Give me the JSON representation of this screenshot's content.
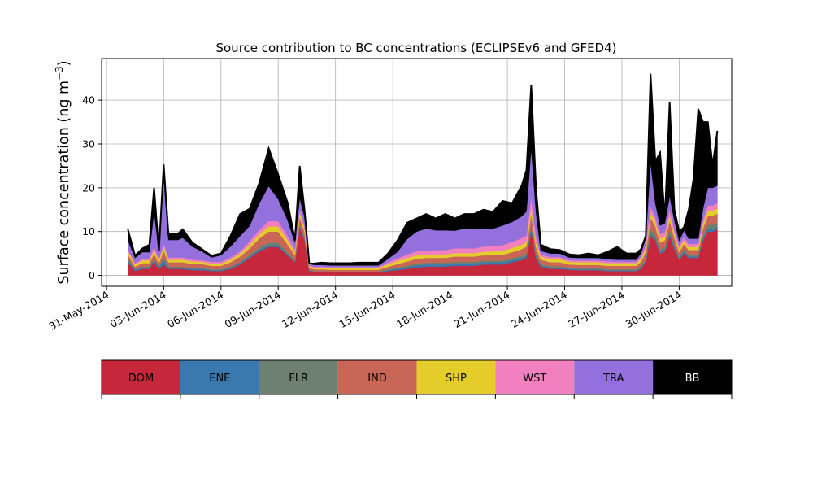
{
  "chart_data": {
    "type": "area",
    "stacked": true,
    "title": "Source contribution to BC concentrations (ECLIPSEv6 and GFED4)",
    "ylabel": "Surface concentration (ng m",
    "ylabel_superscript": "−3",
    "ylabel_close": ")",
    "xlim": [
      "2014-05-30T18:00",
      "2014-07-02T18:00"
    ],
    "ylim": [
      -2.5,
      49.5
    ],
    "yticks": [
      0,
      10,
      20,
      30,
      40
    ],
    "xticks": [
      "2014-05-31",
      "2014-06-03",
      "2014-06-06",
      "2014-06-09",
      "2014-06-12",
      "2014-06-15",
      "2014-06-18",
      "2014-06-21",
      "2014-06-24",
      "2014-06-27",
      "2014-06-30"
    ],
    "xtick_labels": [
      "31-May-2014",
      "03-Jun-2014",
      "06-Jun-2014",
      "09-Jun-2014",
      "12-Jun-2014",
      "15-Jun-2014",
      "18-Jun-2014",
      "21-Jun-2014",
      "24-Jun-2014",
      "27-Jun-2014",
      "30-Jun-2014"
    ],
    "grid": true,
    "legend_position": "bottom colorbar",
    "x": [
      "2014-06-01T03:00",
      "2014-06-01T12:00",
      "2014-06-01T21:00",
      "2014-06-02T06:00",
      "2014-06-02T12:00",
      "2014-06-02T18:00",
      "2014-06-03T00:00",
      "2014-06-03T06:00",
      "2014-06-03T12:00",
      "2014-06-03T18:00",
      "2014-06-04T00:00",
      "2014-06-04T12:00",
      "2014-06-05T00:00",
      "2014-06-05T12:00",
      "2014-06-06T00:00",
      "2014-06-06T12:00",
      "2014-06-07T00:00",
      "2014-06-07T12:00",
      "2014-06-08T00:00",
      "2014-06-08T12:00",
      "2014-06-09T00:00",
      "2014-06-09T12:00",
      "2014-06-09T21:00",
      "2014-06-10T03:00",
      "2014-06-10T09:00",
      "2014-06-10T15:00",
      "2014-06-10T21:00",
      "2014-06-11T06:00",
      "2014-06-11T18:00",
      "2014-06-12T06:00",
      "2014-06-12T18:00",
      "2014-06-13T06:00",
      "2014-06-13T18:00",
      "2014-06-14T06:00",
      "2014-06-14T18:00",
      "2014-06-15T06:00",
      "2014-06-15T18:00",
      "2014-06-16T06:00",
      "2014-06-16T18:00",
      "2014-06-17T06:00",
      "2014-06-17T18:00",
      "2014-06-18T06:00",
      "2014-06-18T18:00",
      "2014-06-19T06:00",
      "2014-06-19T18:00",
      "2014-06-20T06:00",
      "2014-06-20T18:00",
      "2014-06-21T06:00",
      "2014-06-21T18:00",
      "2014-06-22T00:00",
      "2014-06-22T06:00",
      "2014-06-22T12:00",
      "2014-06-22T18:00",
      "2014-06-23T06:00",
      "2014-06-23T18:00",
      "2014-06-24T06:00",
      "2014-06-24T18:00",
      "2014-06-25T06:00",
      "2014-06-25T18:00",
      "2014-06-26T06:00",
      "2014-06-26T18:00",
      "2014-06-27T06:00",
      "2014-06-27T18:00",
      "2014-06-28T00:00",
      "2014-06-28T06:00",
      "2014-06-28T12:00",
      "2014-06-28T18:00",
      "2014-06-29T00:00",
      "2014-06-29T06:00",
      "2014-06-29T12:00",
      "2014-06-29T18:00",
      "2014-06-30T00:00",
      "2014-06-30T06:00",
      "2014-06-30T12:00",
      "2014-06-30T18:00",
      "2014-07-01T00:00",
      "2014-07-01T06:00",
      "2014-07-01T12:00",
      "2014-07-01T18:00",
      "2014-07-02T00:00"
    ],
    "series": [
      {
        "name": "DOM",
        "color": "#c6273a",
        "values": [
          3.0,
          1.0,
          1.5,
          1.5,
          3.0,
          1.5,
          2.5,
          1.5,
          1.5,
          1.5,
          1.5,
          1.2,
          1.2,
          1.0,
          1.0,
          1.5,
          2.5,
          4.0,
          5.5,
          6.5,
          6.5,
          4.5,
          3.0,
          11.0,
          8.0,
          1.0,
          0.8,
          0.8,
          0.7,
          0.7,
          0.7,
          0.7,
          0.7,
          0.7,
          1.0,
          1.2,
          1.5,
          1.8,
          2.0,
          2.0,
          2.0,
          2.2,
          2.2,
          2.2,
          2.5,
          2.5,
          2.5,
          3.0,
          3.5,
          4.0,
          10.0,
          4.0,
          2.0,
          1.5,
          1.5,
          1.3,
          1.2,
          1.2,
          1.2,
          1.0,
          1.0,
          1.0,
          1.0,
          1.5,
          3.0,
          9.0,
          8.0,
          5.0,
          5.5,
          9.0,
          6.0,
          3.5,
          5.0,
          4.0,
          4.0,
          4.0,
          8.0,
          10.0,
          10.0,
          10.5
        ]
      },
      {
        "name": "ENE",
        "color": "#3a78b0",
        "values": [
          0.5,
          0.3,
          0.3,
          0.3,
          0.5,
          0.3,
          1.2,
          0.3,
          0.3,
          0.3,
          0.3,
          0.3,
          0.3,
          0.2,
          0.2,
          0.3,
          0.3,
          0.3,
          0.4,
          0.4,
          0.4,
          0.3,
          0.2,
          0.3,
          0.3,
          0.2,
          0.1,
          0.1,
          0.1,
          0.1,
          0.1,
          0.1,
          0.1,
          0.1,
          0.2,
          0.3,
          0.4,
          0.5,
          0.5,
          0.5,
          0.5,
          0.5,
          0.5,
          0.5,
          0.5,
          0.5,
          0.5,
          0.5,
          0.5,
          0.5,
          0.8,
          0.5,
          0.3,
          0.3,
          0.3,
          0.2,
          0.2,
          0.2,
          0.2,
          0.2,
          0.2,
          0.2,
          0.2,
          0.3,
          0.4,
          0.6,
          0.5,
          0.4,
          0.4,
          0.6,
          0.4,
          0.3,
          0.4,
          0.3,
          0.3,
          0.3,
          0.5,
          0.6,
          0.6,
          0.6
        ]
      },
      {
        "name": "FLR",
        "color": "#6e8070",
        "values": [
          0.3,
          0.2,
          0.2,
          0.2,
          0.3,
          0.2,
          0.5,
          0.2,
          0.2,
          0.2,
          0.2,
          0.2,
          0.2,
          0.2,
          0.2,
          0.2,
          0.3,
          0.4,
          0.5,
          0.6,
          0.6,
          0.4,
          0.3,
          0.6,
          0.5,
          0.1,
          0.1,
          0.1,
          0.1,
          0.1,
          0.1,
          0.1,
          0.1,
          0.1,
          0.2,
          0.3,
          0.3,
          0.4,
          0.4,
          0.4,
          0.4,
          0.4,
          0.4,
          0.4,
          0.4,
          0.4,
          0.4,
          0.4,
          0.5,
          0.5,
          0.8,
          0.5,
          0.3,
          0.3,
          0.3,
          0.2,
          0.2,
          0.2,
          0.2,
          0.2,
          0.2,
          0.2,
          0.2,
          0.3,
          0.5,
          1.0,
          0.8,
          0.6,
          0.6,
          0.9,
          0.7,
          0.5,
          0.6,
          0.5,
          0.5,
          0.5,
          0.8,
          1.0,
          1.0,
          1.0
        ]
      },
      {
        "name": "IND",
        "color": "#c96655",
        "values": [
          1.0,
          0.5,
          0.8,
          0.8,
          1.2,
          0.8,
          1.5,
          1.0,
          1.0,
          1.0,
          1.0,
          0.9,
          0.9,
          0.8,
          0.8,
          1.0,
          1.2,
          1.5,
          2.0,
          2.5,
          2.5,
          1.8,
          1.2,
          1.5,
          1.2,
          0.4,
          0.4,
          0.4,
          0.4,
          0.4,
          0.4,
          0.4,
          0.4,
          0.4,
          0.6,
          0.8,
          1.0,
          1.1,
          1.1,
          1.1,
          1.1,
          1.2,
          1.2,
          1.2,
          1.2,
          1.2,
          1.3,
          1.4,
          1.5,
          1.6,
          2.5,
          1.5,
          1.0,
          0.9,
          0.9,
          0.8,
          0.8,
          0.8,
          0.8,
          0.8,
          0.8,
          0.8,
          0.8,
          1.0,
          1.5,
          2.5,
          2.0,
          1.5,
          1.5,
          2.0,
          1.5,
          1.0,
          1.2,
          1.0,
          1.0,
          1.0,
          1.5,
          2.0,
          2.0,
          2.0
        ]
      },
      {
        "name": "SHP",
        "color": "#e4cd2a",
        "values": [
          0.8,
          0.5,
          0.6,
          0.6,
          0.8,
          0.6,
          1.0,
          0.6,
          0.6,
          0.6,
          0.6,
          0.6,
          0.5,
          0.5,
          0.5,
          0.6,
          0.7,
          0.8,
          1.0,
          1.2,
          1.2,
          1.0,
          0.7,
          1.0,
          0.8,
          0.4,
          0.4,
          0.4,
          0.4,
          0.4,
          0.4,
          0.4,
          0.4,
          0.4,
          0.6,
          0.7,
          0.8,
          0.8,
          0.8,
          0.8,
          0.8,
          0.8,
          0.8,
          0.8,
          0.8,
          0.9,
          0.9,
          1.0,
          1.0,
          1.0,
          1.5,
          1.0,
          0.7,
          0.7,
          0.7,
          0.6,
          0.6,
          0.6,
          0.6,
          0.6,
          0.6,
          0.6,
          0.6,
          0.7,
          0.9,
          1.2,
          1.0,
          0.9,
          0.9,
          1.1,
          0.9,
          0.7,
          0.8,
          0.7,
          0.7,
          0.7,
          1.0,
          1.2,
          1.2,
          1.2
        ]
      },
      {
        "name": "WST",
        "color": "#f27fbf",
        "values": [
          0.5,
          0.3,
          0.4,
          0.4,
          0.8,
          0.4,
          0.6,
          0.5,
          0.5,
          0.5,
          0.5,
          0.4,
          0.4,
          0.4,
          0.4,
          0.5,
          0.5,
          0.8,
          1.0,
          1.2,
          1.2,
          1.0,
          0.6,
          0.8,
          0.6,
          0.2,
          0.2,
          0.2,
          0.2,
          0.2,
          0.2,
          0.2,
          0.2,
          0.2,
          0.4,
          0.6,
          0.8,
          0.9,
          0.9,
          1.0,
          1.0,
          1.1,
          1.1,
          1.1,
          1.2,
          1.2,
          1.3,
          1.4,
          1.5,
          1.5,
          2.5,
          1.5,
          0.5,
          0.5,
          0.5,
          0.4,
          0.4,
          0.4,
          0.4,
          0.4,
          0.3,
          0.3,
          0.3,
          0.5,
          0.8,
          1.5,
          1.2,
          1.0,
          1.0,
          1.5,
          1.0,
          0.7,
          0.8,
          0.7,
          0.7,
          0.7,
          1.0,
          1.2,
          1.2,
          1.2
        ]
      },
      {
        "name": "TRA",
        "color": "#9370db",
        "values": [
          2.0,
          1.2,
          1.5,
          1.5,
          8.0,
          1.5,
          15.0,
          4.0,
          4.0,
          4.0,
          4.5,
          3.0,
          2.0,
          1.0,
          1.5,
          2.5,
          3.5,
          3.5,
          6.0,
          8.0,
          5.0,
          3.5,
          1.5,
          2.5,
          2.0,
          0.4,
          0.4,
          0.4,
          0.4,
          0.4,
          0.4,
          0.4,
          0.4,
          0.4,
          0.8,
          1.5,
          3.5,
          4.5,
          5.0,
          4.5,
          4.5,
          4.0,
          4.5,
          4.5,
          4.0,
          4.0,
          4.5,
          4.5,
          5.0,
          5.5,
          11.0,
          5.5,
          0.8,
          0.8,
          0.8,
          0.6,
          0.6,
          0.6,
          0.6,
          0.5,
          0.5,
          0.5,
          0.5,
          0.8,
          1.5,
          10.0,
          3.0,
          2.0,
          2.0,
          3.0,
          2.0,
          1.2,
          1.5,
          1.2,
          1.2,
          1.2,
          2.5,
          4.0,
          4.0,
          4.0
        ]
      },
      {
        "name": "BB",
        "color": "#000000",
        "values": [
          2.4,
          0.5,
          0.8,
          1.7,
          5.4,
          0.2,
          3.0,
          1.4,
          1.4,
          1.4,
          1.9,
          0.9,
          0.5,
          0.4,
          0.4,
          2.4,
          5.0,
          3.9,
          4.6,
          8.6,
          5.6,
          4.0,
          0.5,
          7.3,
          1.6,
          0.0,
          0.3,
          0.5,
          0.5,
          0.5,
          0.5,
          0.6,
          0.6,
          0.6,
          1.2,
          2.6,
          3.7,
          3.0,
          3.3,
          2.7,
          3.7,
          2.8,
          3.3,
          3.3,
          4.4,
          3.8,
          5.6,
          4.3,
          7.0,
          9.4,
          14.4,
          5.5,
          1.4,
          1.0,
          0.8,
          0.7,
          0.6,
          1.0,
          0.6,
          1.7,
          2.9,
          1.4,
          1.4,
          0.9,
          0.4,
          20.2,
          9.5,
          16.6,
          1.1,
          21.4,
          2.5,
          2.1,
          0.7,
          6.6,
          13.6,
          29.6,
          19.7,
          15.0,
          5.0,
          12.5
        ]
      }
    ],
    "legend": [
      "DOM",
      "ENE",
      "FLR",
      "IND",
      "SHP",
      "WST",
      "TRA",
      "BB"
    ]
  }
}
